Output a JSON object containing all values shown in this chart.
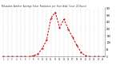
{
  "title": "Milwaukee Weather Average Solar Radiation per Hour W/m2 (Last 24 Hours)",
  "x_labels": [
    "1",
    "2",
    "3",
    "4",
    "5",
    "6",
    "7",
    "8",
    "9",
    "10",
    "11",
    "12",
    "13",
    "14",
    "15",
    "16",
    "17",
    "18",
    "19",
    "20",
    "21",
    "22",
    "23",
    "24"
  ],
  "y_values": [
    0,
    0,
    0,
    0,
    0,
    0,
    0,
    5,
    20,
    60,
    120,
    280,
    320,
    210,
    270,
    200,
    140,
    80,
    30,
    5,
    0,
    0,
    0,
    0
  ],
  "ylim": [
    0,
    350
  ],
  "line_color": "#cc0000",
  "bg_color": "#ffffff",
  "plot_bg": "#ffffff",
  "grid_color": "#aaaaaa",
  "ytick_interval": 50,
  "dpi": 100
}
